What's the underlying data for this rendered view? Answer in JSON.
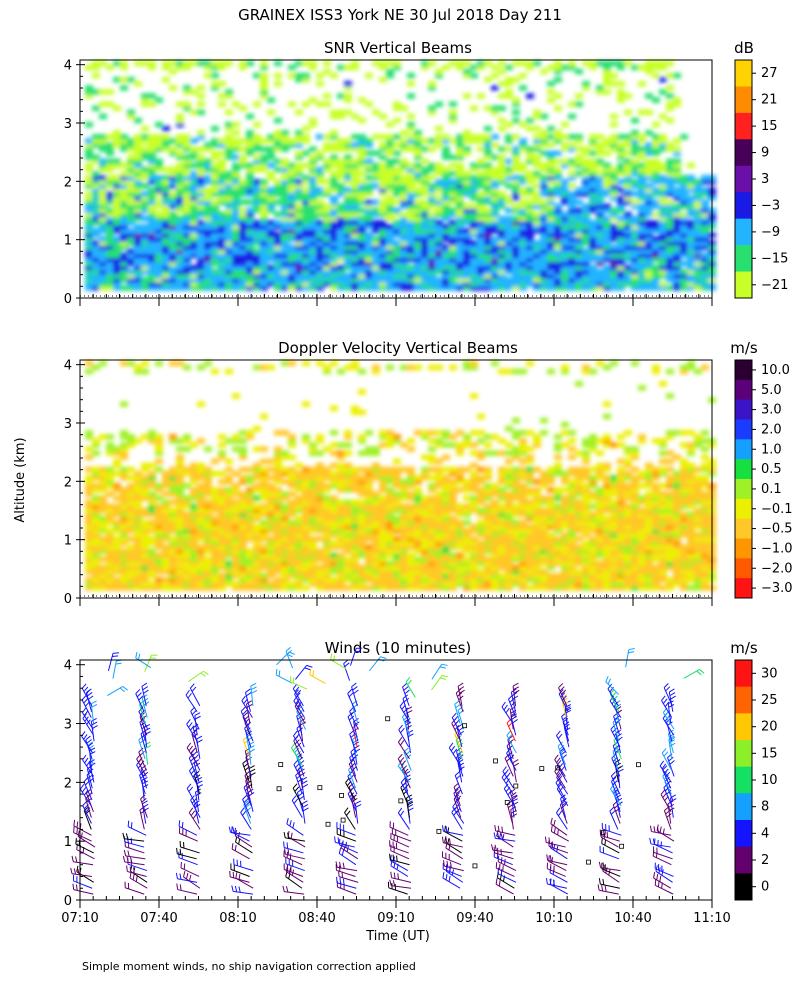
{
  "title": "GRAINEX ISS3 York NE  30 Jul 2018 Day 211",
  "shared_ylabel": "Altitude (km)",
  "xlabel": "Time (UT)",
  "x_ticks": [
    "07:10",
    "07:40",
    "08:10",
    "08:40",
    "09:10",
    "09:40",
    "10:10",
    "10:40",
    "11:10"
  ],
  "footnote": "Simple moment winds, no ship navigation correction applied",
  "chart_data": [
    {
      "type": "heatmap",
      "title": "SNR Vertical Beams",
      "ylabel": "Altitude (km)",
      "xlabel": "",
      "ylim": [
        0,
        4
      ],
      "y_ticks": [
        "0",
        "1",
        "2",
        "3",
        "4"
      ],
      "colorbar": {
        "unit": "dB",
        "labels": [
          "27",
          "21",
          "15",
          "9",
          "3",
          "−3",
          "−9",
          "−15",
          "−21"
        ],
        "colors": [
          "#ffd200",
          "#ff8c00",
          "#ff2020",
          "#46005a",
          "#6a0fa8",
          "#1a1ae6",
          "#22b4ff",
          "#28e070",
          "#c8ff28"
        ]
      },
      "approx_layers": [
        {
          "alt_range_km": [
            0.15,
            0.5
          ],
          "dominant_dB": -12
        },
        {
          "alt_range_km": [
            0.5,
            1.3
          ],
          "dominant_dB": -6
        },
        {
          "alt_range_km": [
            1.3,
            2.0
          ],
          "dominant_dB": -14
        },
        {
          "alt_range_km": [
            2.0,
            2.8
          ],
          "dominant_dB": -18
        },
        {
          "alt_range_km": [
            2.8,
            4.0
          ],
          "dominant_dB": -20
        }
      ]
    },
    {
      "type": "heatmap",
      "title": "Doppler Velocity Vertical Beams",
      "ylabel": "Altitude (km)",
      "xlabel": "",
      "ylim": [
        0,
        4
      ],
      "y_ticks": [
        "0",
        "1",
        "2",
        "3",
        "4"
      ],
      "colorbar": {
        "unit": "m/s",
        "labels": [
          "10.0",
          "5.0",
          "3.0",
          "2.0",
          "1.0",
          "0.5",
          "0.1",
          "−0.1",
          "−0.5",
          "−1.0",
          "−2.0",
          "−3.0"
        ],
        "colors": [
          "#2a0030",
          "#5a007a",
          "#3c14c8",
          "#1a3cff",
          "#14a0ff",
          "#14e040",
          "#a0f028",
          "#ecf000",
          "#ffc828",
          "#ff9600",
          "#ff5a00",
          "#ff1414"
        ]
      },
      "approx_layers": [
        {
          "alt_range_km": [
            0.15,
            2.2
          ],
          "dominant_mps": -0.5
        },
        {
          "alt_range_km": [
            2.4,
            2.8
          ],
          "dominant_mps": 0.0
        },
        {
          "alt_range_km": [
            3.8,
            4.0
          ],
          "dominant_mps": 0.1
        }
      ]
    },
    {
      "type": "scatter",
      "title": "Winds (10 minutes)",
      "ylabel": "Altitude (km)",
      "xlabel": "Time (UT)",
      "ylim": [
        0,
        4
      ],
      "y_ticks": [
        "0",
        "1",
        "2",
        "3",
        "4"
      ],
      "colorbar": {
        "unit": "m/s",
        "labels": [
          "30",
          "25",
          "20",
          "15",
          "10",
          "8",
          "4",
          "2",
          "0"
        ],
        "colors": [
          "#ff1414",
          "#ff6400",
          "#ffc800",
          "#8cf028",
          "#14e064",
          "#14a0ff",
          "#1414ff",
          "#64006e",
          "#000000"
        ]
      },
      "profile_times_min_after_0710": [
        5,
        25,
        45,
        65,
        85,
        105,
        125,
        145,
        165,
        185,
        205,
        225
      ]
    }
  ]
}
